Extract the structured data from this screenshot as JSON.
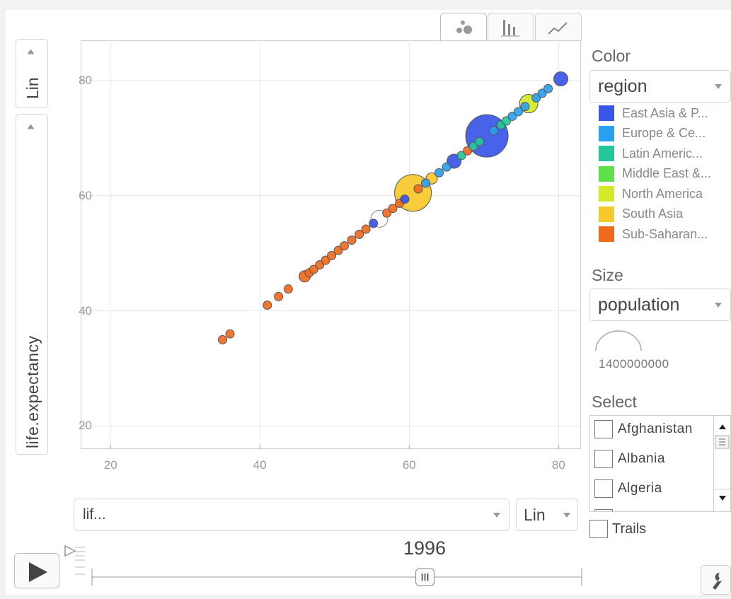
{
  "colors": {
    "east_asia": "#3a55e8",
    "europe": "#2aa0f0",
    "latin": "#23c89a",
    "middle_east": "#5ee04a",
    "north_america": "#d4ea28",
    "south_asia": "#f7c82a",
    "sub_saharan": "#f06a1e"
  },
  "tabs": [
    {
      "name": "bubble-chart-tab",
      "icon": "bubbles-icon",
      "active": true
    },
    {
      "name": "bar-chart-tab",
      "icon": "bars-icon",
      "active": false
    },
    {
      "name": "line-chart-tab",
      "icon": "line-icon",
      "active": false
    }
  ],
  "y_axis": {
    "scale_label": "Lin",
    "variable_label": "life.expectancy"
  },
  "x_axis": {
    "variable_label": "lif...",
    "scale_label": "Lin"
  },
  "color_panel": {
    "label": "Color",
    "selected": "region",
    "legend": [
      {
        "label": "East Asia & P...",
        "color": "#3a55e8"
      },
      {
        "label": "Europe & Ce...",
        "color": "#2aa0f0"
      },
      {
        "label": "Latin Americ...",
        "color": "#23c89a"
      },
      {
        "label": "Middle East &...",
        "color": "#5ee04a"
      },
      {
        "label": "North America",
        "color": "#d4ea28"
      },
      {
        "label": "South Asia",
        "color": "#f7c82a"
      },
      {
        "label": "Sub-Saharan...",
        "color": "#f06a1e"
      }
    ]
  },
  "size_panel": {
    "label": "Size",
    "selected": "population",
    "max_value": "1400000000"
  },
  "select_panel": {
    "label": "Select",
    "items": [
      "Afghanistan",
      "Albania",
      "Algeria"
    ]
  },
  "trails_label": "Trails",
  "timeline": {
    "year": "1996",
    "position": 0.68
  },
  "chart_data": {
    "type": "scatter",
    "xlabel": "lif...",
    "ylabel": "life.expectancy",
    "xlim": [
      16,
      83
    ],
    "ylim": [
      16,
      87
    ],
    "xticks": [
      20,
      40,
      60,
      80
    ],
    "yticks": [
      20,
      40,
      60,
      80
    ],
    "grid": true,
    "points": [
      {
        "x": 35.0,
        "y": 35.0,
        "s": 6,
        "region": "sub_saharan"
      },
      {
        "x": 36.0,
        "y": 36.0,
        "s": 6,
        "region": "sub_saharan"
      },
      {
        "x": 41.0,
        "y": 41.0,
        "s": 6,
        "region": "sub_saharan"
      },
      {
        "x": 42.5,
        "y": 42.5,
        "s": 6,
        "region": "sub_saharan"
      },
      {
        "x": 43.8,
        "y": 43.8,
        "s": 6,
        "region": "sub_saharan"
      },
      {
        "x": 46.0,
        "y": 46.0,
        "s": 8,
        "region": "sub_saharan"
      },
      {
        "x": 46.6,
        "y": 46.6,
        "s": 6,
        "region": "sub_saharan"
      },
      {
        "x": 47.2,
        "y": 47.2,
        "s": 6,
        "region": "sub_saharan"
      },
      {
        "x": 48.0,
        "y": 48.0,
        "s": 6,
        "region": "sub_saharan"
      },
      {
        "x": 48.8,
        "y": 48.8,
        "s": 6,
        "region": "sub_saharan"
      },
      {
        "x": 49.6,
        "y": 49.6,
        "s": 6,
        "region": "sub_saharan"
      },
      {
        "x": 50.5,
        "y": 50.5,
        "s": 6,
        "region": "sub_saharan"
      },
      {
        "x": 51.3,
        "y": 51.3,
        "s": 6,
        "region": "sub_saharan"
      },
      {
        "x": 52.3,
        "y": 52.3,
        "s": 6,
        "region": "sub_saharan"
      },
      {
        "x": 53.3,
        "y": 53.3,
        "s": 6,
        "region": "sub_saharan"
      },
      {
        "x": 54.2,
        "y": 54.2,
        "s": 6,
        "region": "sub_saharan"
      },
      {
        "x": 55.2,
        "y": 55.2,
        "s": 6,
        "region": "east_asia"
      },
      {
        "x": 56.0,
        "y": 56.0,
        "s": 12,
        "region": "none"
      },
      {
        "x": 57.0,
        "y": 57.0,
        "s": 6,
        "region": "sub_saharan"
      },
      {
        "x": 57.8,
        "y": 57.8,
        "s": 6,
        "region": "sub_saharan"
      },
      {
        "x": 58.7,
        "y": 58.7,
        "s": 6,
        "region": "sub_saharan"
      },
      {
        "x": 59.4,
        "y": 59.4,
        "s": 6,
        "region": "east_asia"
      },
      {
        "x": 60.5,
        "y": 60.5,
        "s": 26,
        "region": "south_asia"
      },
      {
        "x": 61.2,
        "y": 61.2,
        "s": 6,
        "region": "sub_saharan"
      },
      {
        "x": 62.2,
        "y": 62.2,
        "s": 6,
        "region": "europe"
      },
      {
        "x": 63.0,
        "y": 63.0,
        "s": 8,
        "region": "south_asia"
      },
      {
        "x": 64.0,
        "y": 64.0,
        "s": 6,
        "region": "europe"
      },
      {
        "x": 65.0,
        "y": 65.0,
        "s": 6,
        "region": "europe"
      },
      {
        "x": 66.0,
        "y": 66.0,
        "s": 10,
        "region": "east_asia"
      },
      {
        "x": 67.0,
        "y": 67.0,
        "s": 6,
        "region": "latin"
      },
      {
        "x": 67.8,
        "y": 67.8,
        "s": 6,
        "region": "sub_saharan"
      },
      {
        "x": 68.6,
        "y": 68.6,
        "s": 6,
        "region": "latin"
      },
      {
        "x": 69.4,
        "y": 69.4,
        "s": 6,
        "region": "latin"
      },
      {
        "x": 70.4,
        "y": 70.4,
        "s": 30,
        "region": "east_asia"
      },
      {
        "x": 71.3,
        "y": 71.3,
        "s": 6,
        "region": "europe"
      },
      {
        "x": 72.3,
        "y": 72.3,
        "s": 6,
        "region": "latin"
      },
      {
        "x": 73.0,
        "y": 73.0,
        "s": 6,
        "region": "latin"
      },
      {
        "x": 73.8,
        "y": 73.8,
        "s": 6,
        "region": "europe"
      },
      {
        "x": 74.6,
        "y": 74.6,
        "s": 6,
        "region": "europe"
      },
      {
        "x": 75.5,
        "y": 75.5,
        "s": 6,
        "region": "europe"
      },
      {
        "x": 76.0,
        "y": 76.0,
        "s": 13,
        "region": "north_america"
      },
      {
        "x": 77.0,
        "y": 77.0,
        "s": 6,
        "region": "europe"
      },
      {
        "x": 77.8,
        "y": 77.8,
        "s": 6,
        "region": "europe"
      },
      {
        "x": 78.6,
        "y": 78.6,
        "s": 6,
        "region": "europe"
      },
      {
        "x": 80.3,
        "y": 80.3,
        "s": 10,
        "region": "east_asia"
      }
    ]
  }
}
